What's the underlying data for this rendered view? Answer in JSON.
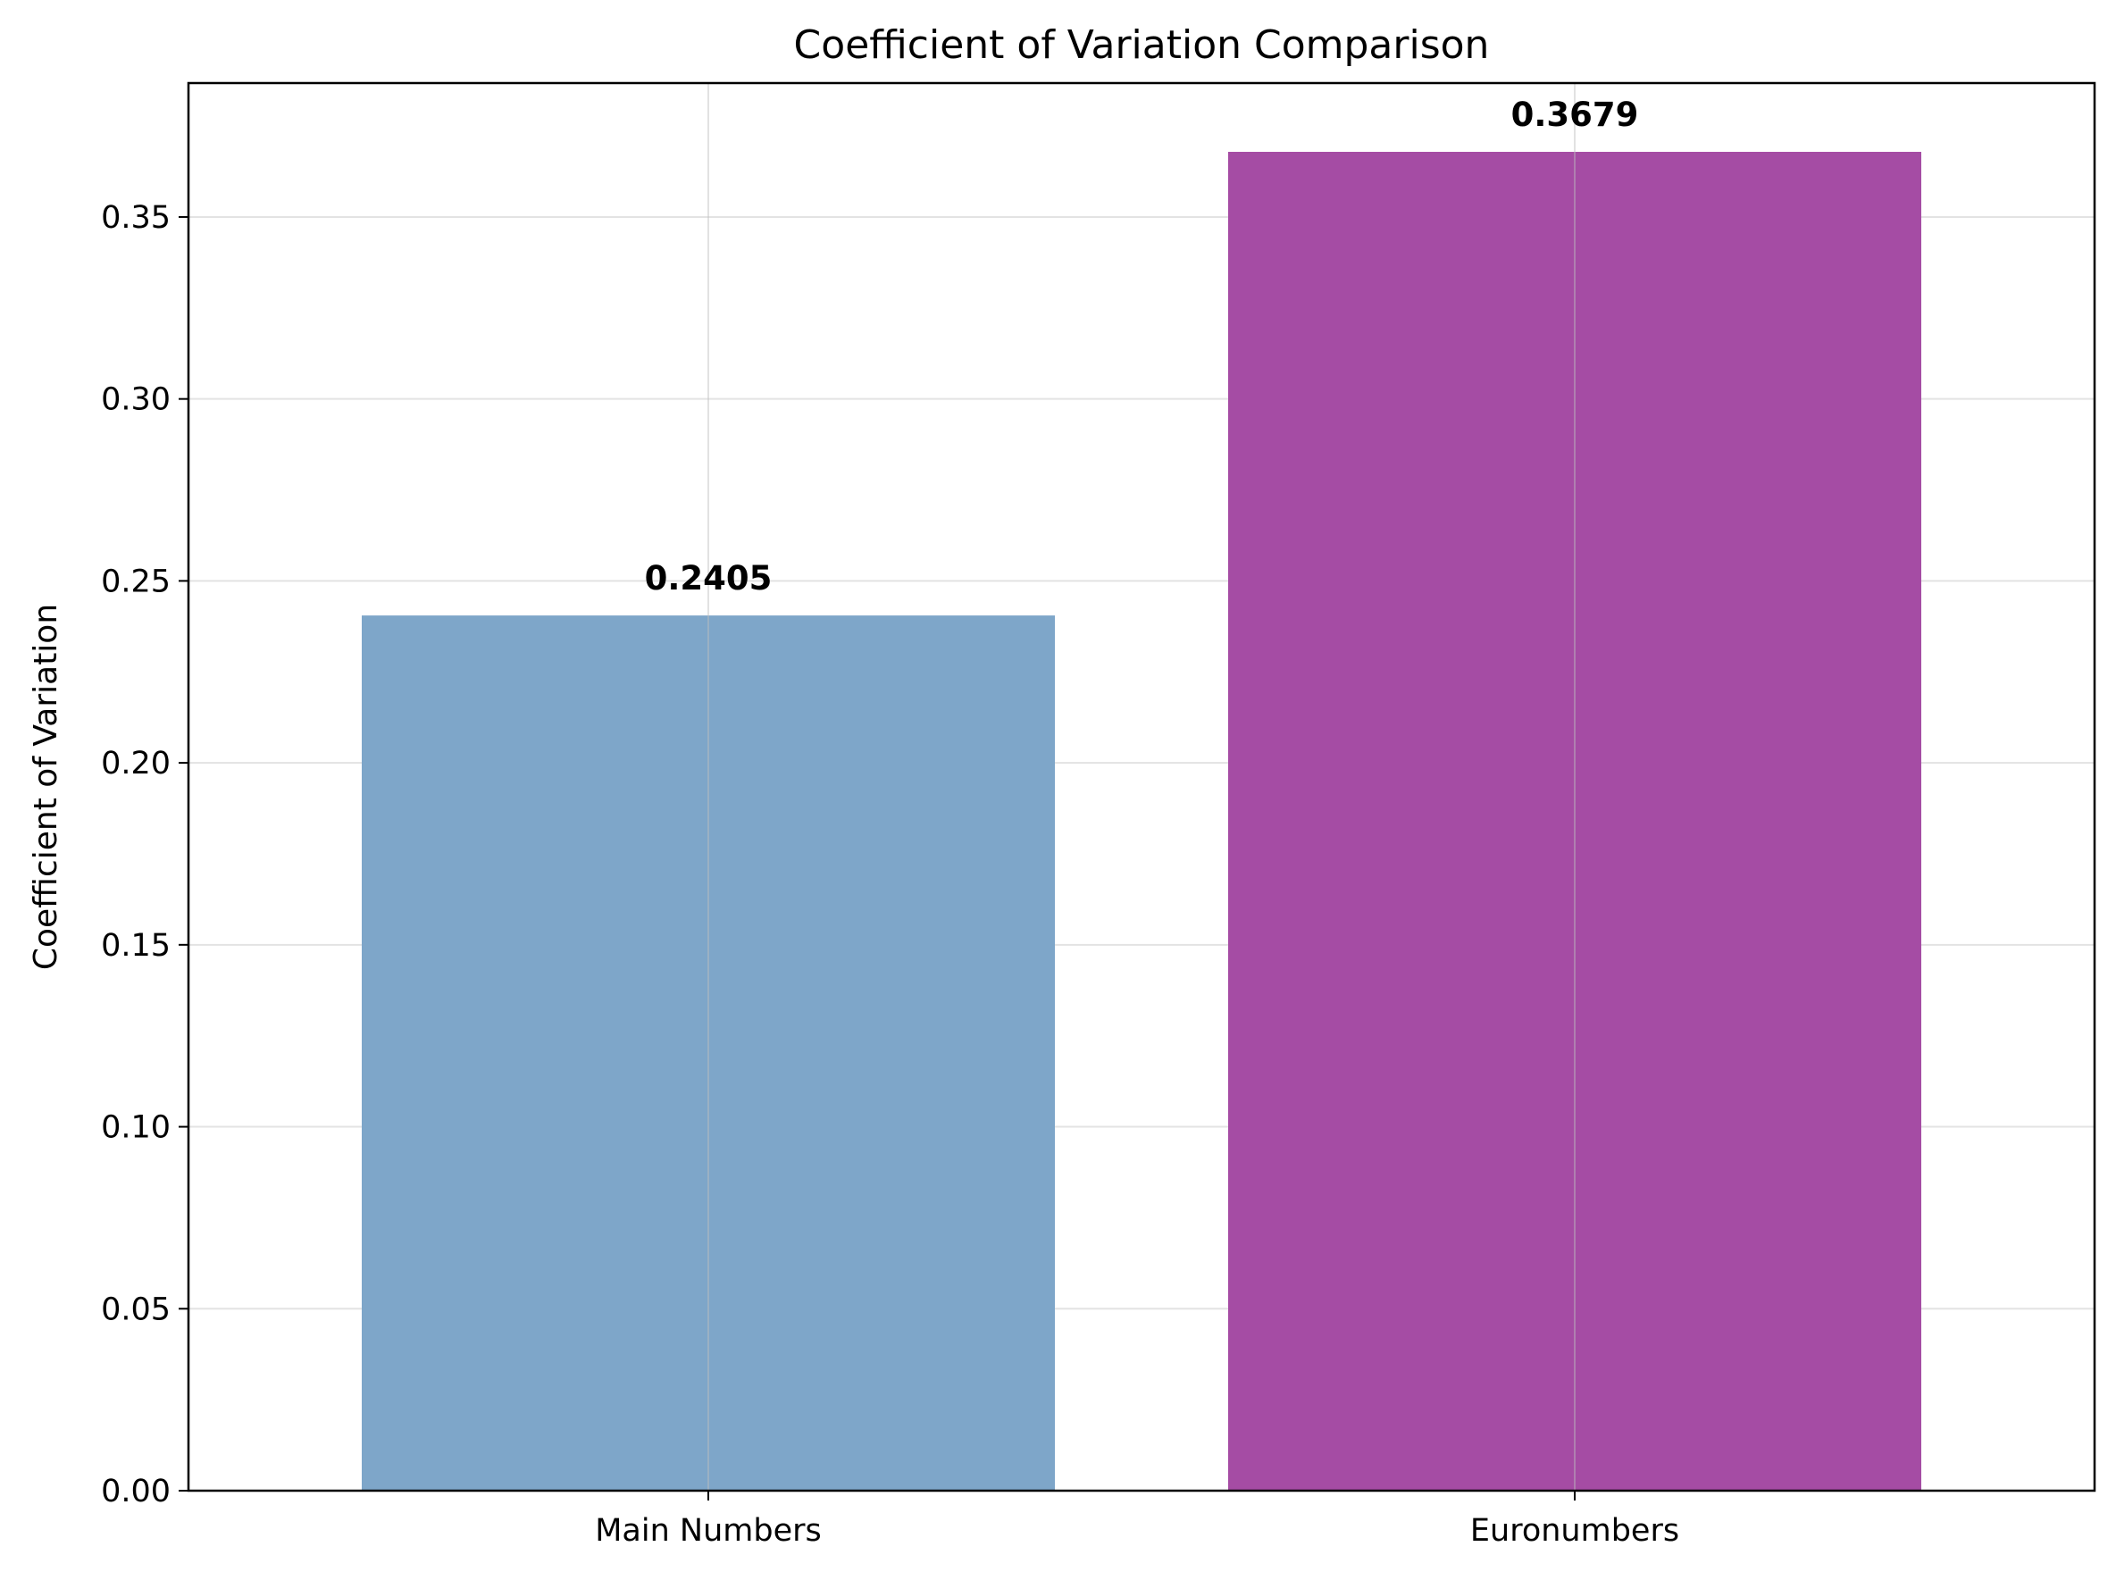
{
  "chart_data": {
    "type": "bar",
    "title": "Coefficient of Variation Comparison",
    "xlabel": "",
    "ylabel": "Coefficient of Variation",
    "categories": [
      "Main Numbers",
      "Euronumbers"
    ],
    "values": [
      0.2405,
      0.3679
    ],
    "value_labels": [
      "0.2405",
      "0.3679"
    ],
    "colors": [
      "#7ea6c9",
      "#a54ca4"
    ],
    "ylim": [
      0,
      0.3868
    ],
    "yticks": [
      0.0,
      0.05,
      0.1,
      0.15,
      0.2,
      0.25,
      0.3,
      0.35
    ],
    "ytick_labels": [
      "0.00",
      "0.05",
      "0.10",
      "0.15",
      "0.20",
      "0.25",
      "0.30",
      "0.35"
    ],
    "grid": true,
    "legend": "none"
  }
}
